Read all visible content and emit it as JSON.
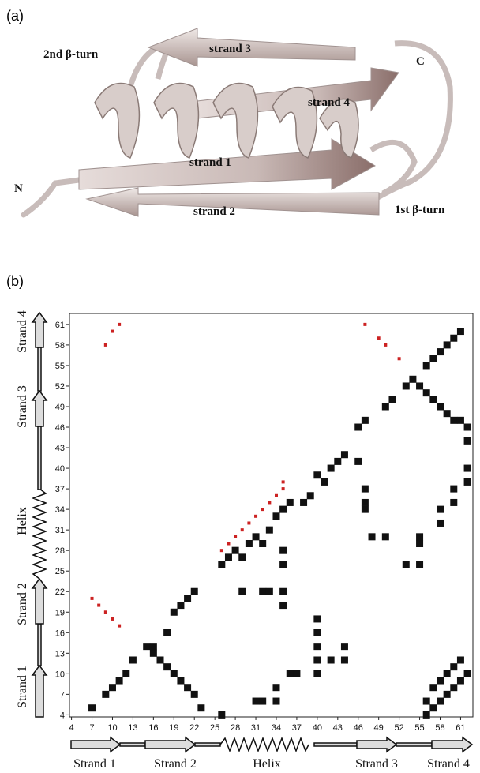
{
  "panel_a": {
    "label": "(a)",
    "annotations": [
      "2nd β-turn",
      "strand 3",
      "C",
      "strand 4",
      "strand 1",
      "N",
      "strand 2",
      "1st β-turn"
    ]
  },
  "panel_b_label": "(b)",
  "chart_data": {
    "type": "scatter",
    "xlim": [
      3.7,
      62.8
    ],
    "ylim": [
      3.7,
      62.6
    ],
    "xticks": [
      4,
      7,
      10,
      13,
      16,
      19,
      22,
      25,
      28,
      31,
      34,
      37,
      40,
      43,
      46,
      49,
      52,
      55,
      58,
      61
    ],
    "yticks": [
      4,
      7,
      10,
      13,
      16,
      19,
      22,
      25,
      28,
      31,
      34,
      37,
      40,
      43,
      46,
      49,
      52,
      55,
      58,
      61
    ],
    "x_segments": [
      "Strand 1",
      "Strand 2",
      "Helix",
      "Strand 3",
      "Strand 4"
    ],
    "y_segments": [
      "Strand 1",
      "Strand 2",
      "Helix",
      "Strand 3",
      "Strand 4"
    ],
    "series": [
      {
        "color": "#111111",
        "x": [
          7,
          9,
          10,
          11,
          12,
          13,
          15,
          16,
          17,
          18,
          19,
          20,
          21,
          22,
          23,
          16,
          18,
          19,
          20,
          21,
          22,
          26,
          26,
          27,
          28,
          29,
          30,
          31,
          32,
          33,
          34,
          35,
          36,
          38,
          39,
          40,
          41,
          42,
          43,
          44,
          29,
          32,
          33,
          35,
          35,
          31,
          32,
          34,
          34,
          36,
          37,
          35,
          35,
          40,
          40,
          40,
          40,
          40,
          42,
          44,
          44,
          46,
          47,
          47,
          47,
          48,
          50,
          46,
          47,
          50,
          51,
          53,
          53,
          55,
          55,
          55,
          56,
          57,
          58,
          59,
          60,
          61,
          62,
          56,
          57,
          58,
          59,
          60,
          61,
          58,
          58,
          60,
          60,
          62,
          62,
          62,
          54,
          55,
          56,
          57,
          58,
          59,
          60,
          61,
          62,
          56,
          57,
          58,
          59,
          60,
          61
        ],
        "y": [
          5,
          7,
          8,
          9,
          10,
          12,
          14,
          13,
          12,
          11,
          10,
          9,
          8,
          7,
          5,
          14,
          16,
          19,
          20,
          21,
          22,
          4,
          26,
          27,
          28,
          27,
          29,
          30,
          29,
          31,
          33,
          34,
          35,
          35,
          36,
          39,
          38,
          40,
          41,
          42,
          22,
          22,
          22,
          22,
          20,
          6,
          6,
          8,
          6,
          10,
          10,
          26,
          28,
          18,
          16,
          14,
          12,
          10,
          12,
          12,
          14,
          41,
          37,
          35,
          34,
          30,
          30,
          46,
          47,
          49,
          50,
          52,
          26,
          26,
          29,
          30,
          4,
          5,
          6,
          7,
          8,
          9,
          10,
          6,
          8,
          9,
          10,
          11,
          12,
          32,
          34,
          35,
          37,
          38,
          40,
          44,
          53,
          52,
          51,
          50,
          49,
          48,
          47,
          47,
          46,
          55,
          56,
          57,
          58,
          59,
          60
        ]
      },
      {
        "color": "#cc2222",
        "x": [
          9,
          10,
          11,
          7,
          8,
          9,
          10,
          11,
          26,
          27,
          28,
          29,
          30,
          31,
          32,
          33,
          34,
          35,
          35,
          47,
          49,
          50,
          52
        ],
        "y": [
          58,
          60,
          61,
          21,
          20,
          19,
          18,
          17,
          28,
          29,
          30,
          31,
          32,
          33,
          34,
          35,
          36,
          37,
          38,
          61,
          59,
          58,
          56
        ]
      }
    ]
  }
}
